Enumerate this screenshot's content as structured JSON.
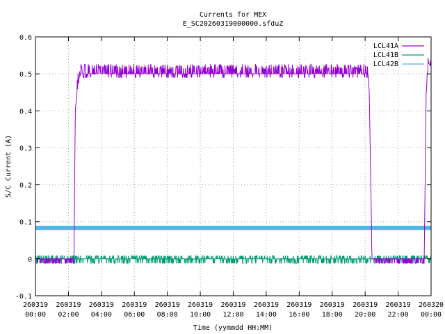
{
  "chart_data": {
    "type": "line",
    "title": "Currents for MEX",
    "subtitle": "E_SC20260319000000.sfduZ",
    "xlabel": "Time (yymmdd HH:MM)",
    "ylabel": "S/C Current (A)",
    "ylim": [
      -0.1,
      0.6
    ],
    "yticks": [
      -0.1,
      0,
      0.1,
      0.2,
      0.3,
      0.4,
      0.5,
      0.6
    ],
    "ytick_labels": [
      "-0.1",
      "0",
      "0.1",
      "0.2",
      "0.3",
      "0.4",
      "0.5",
      "0.6"
    ],
    "xlim": [
      "260319 00:00",
      "260320 00:00"
    ],
    "xticks": [
      0,
      2,
      4,
      6,
      8,
      10,
      12,
      14,
      16,
      18,
      20,
      22,
      24
    ],
    "xtick_labels": [
      [
        "260319",
        "00:00"
      ],
      [
        "260319",
        "02:00"
      ],
      [
        "260319",
        "04:00"
      ],
      [
        "260319",
        "06:00"
      ],
      [
        "260319",
        "08:00"
      ],
      [
        "260319",
        "10:00"
      ],
      [
        "260319",
        "12:00"
      ],
      [
        "260319",
        "14:00"
      ],
      [
        "260319",
        "16:00"
      ],
      [
        "260319",
        "18:00"
      ],
      [
        "260319",
        "20:00"
      ],
      [
        "260319",
        "22:00"
      ],
      [
        "260320",
        "00:00"
      ]
    ],
    "grid": true,
    "legend_position": "top-right",
    "series": [
      {
        "name": "LCL41A",
        "color": "#9400d3",
        "x": [
          "260319 00:00",
          "260319 02:20",
          "260319 02:25",
          "260319 02:35",
          "260319 02:45",
          "260319 03:00",
          "260319 06:00",
          "260319 10:00",
          "260319 14:00",
          "260319 18:00",
          "260319 20:10",
          "260319 20:15",
          "260319 20:25",
          "260319 22:00",
          "260319 23:35",
          "260319 23:42",
          "260319 23:50",
          "260320 00:00"
        ],
        "y": [
          0.0,
          0.0,
          0.4,
          0.48,
          0.5,
          0.5,
          0.5,
          0.5,
          0.5,
          0.5,
          0.5,
          0.45,
          0.0,
          0.0,
          0.0,
          0.45,
          0.53,
          0.52
        ]
      },
      {
        "name": "LCL41B",
        "color": "#009e73",
        "x": [
          "260319 00:00",
          "260320 00:00"
        ],
        "y": [
          0.0,
          0.0
        ]
      },
      {
        "name": "LCL42B",
        "color": "#56b4e9",
        "x": [
          "260319 00:00",
          "260320 00:00"
        ],
        "y": [
          0.083,
          0.083
        ]
      }
    ]
  }
}
